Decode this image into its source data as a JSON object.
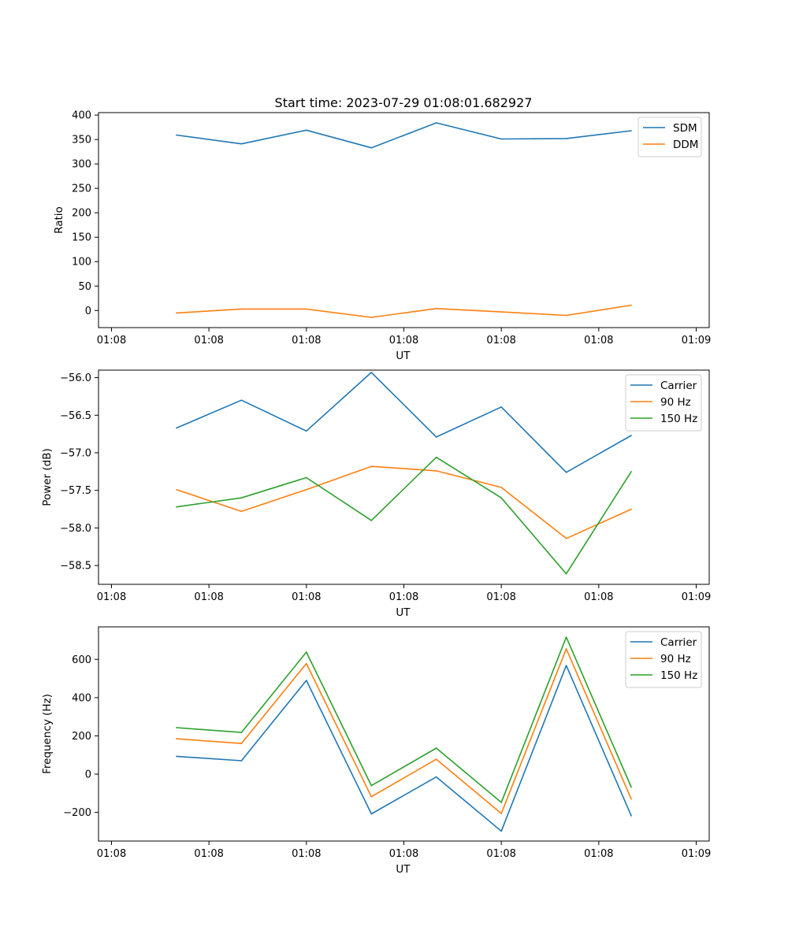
{
  "figure_title": "Start time: 2023-07-29 01:08:01.682927",
  "chart_data": [
    {
      "type": "line",
      "title": "Start time: 2023-07-29 01:08:01.682927",
      "xlabel": "UT",
      "ylabel": "Ratio",
      "x": [
        1,
        2,
        3,
        4,
        5,
        6,
        7,
        8
      ],
      "xlim": [
        -0.2,
        9.2
      ],
      "xticks": [
        0,
        1.5,
        3,
        4.5,
        6,
        7.5,
        9
      ],
      "xtick_labels": [
        "01:08",
        "01:08",
        "01:08",
        "01:08",
        "01:08",
        "01:08",
        "01:09"
      ],
      "ylim": [
        -35,
        405
      ],
      "yticks": [
        0,
        50,
        100,
        150,
        200,
        250,
        300,
        350,
        400
      ],
      "ytick_labels": [
        "0",
        "50",
        "100",
        "150",
        "200",
        "250",
        "300",
        "350",
        "400"
      ],
      "legend_position": "top-right",
      "series": [
        {
          "name": "SDM",
          "color": "#1f77b4",
          "values": [
            359,
            341,
            369,
            333,
            384,
            351,
            352,
            368
          ]
        },
        {
          "name": "DDM",
          "color": "#ff7f0e",
          "values": [
            -5,
            3,
            3,
            -14,
            4,
            -3,
            -10,
            11
          ]
        }
      ]
    },
    {
      "type": "line",
      "xlabel": "UT",
      "ylabel": "Power (dB)",
      "x": [
        1,
        2,
        3,
        4,
        5,
        6,
        7,
        8
      ],
      "xlim": [
        -0.2,
        9.2
      ],
      "xticks": [
        0,
        1.5,
        3,
        4.5,
        6,
        7.5,
        9
      ],
      "xtick_labels": [
        "01:08",
        "01:08",
        "01:08",
        "01:08",
        "01:08",
        "01:08",
        "01:09"
      ],
      "ylim": [
        -58.75,
        -55.9
      ],
      "yticks": [
        -58.5,
        -58.0,
        -57.5,
        -57.0,
        -56.5,
        -56.0
      ],
      "ytick_labels": [
        "−58.5",
        "−58.0",
        "−57.5",
        "−57.0",
        "−56.5",
        "−56.0"
      ],
      "legend_position": "top-right",
      "series": [
        {
          "name": "Carrier",
          "color": "#1f77b4",
          "values": [
            -56.67,
            -56.3,
            -56.71,
            -55.93,
            -56.79,
            -56.39,
            -57.26,
            -56.77
          ]
        },
        {
          "name": "90 Hz",
          "color": "#ff7f0e",
          "values": [
            -57.49,
            -57.78,
            -57.49,
            -57.18,
            -57.24,
            -57.46,
            -58.14,
            -57.75
          ]
        },
        {
          "name": "150 Hz",
          "color": "#2ca02c",
          "values": [
            -57.72,
            -57.6,
            -57.33,
            -57.9,
            -57.06,
            -57.6,
            -58.61,
            -57.25
          ]
        }
      ]
    },
    {
      "type": "line",
      "xlabel": "UT",
      "ylabel": "Frequency (Hz)",
      "x": [
        1,
        2,
        3,
        4,
        5,
        6,
        7,
        8
      ],
      "xlim": [
        -0.2,
        9.2
      ],
      "xticks": [
        0,
        1.5,
        3,
        4.5,
        6,
        7.5,
        9
      ],
      "xtick_labels": [
        "01:08",
        "01:08",
        "01:08",
        "01:08",
        "01:08",
        "01:08",
        "01:09"
      ],
      "ylim": [
        -350,
        770
      ],
      "yticks": [
        -200,
        0,
        200,
        400,
        600
      ],
      "ytick_labels": [
        "−200",
        "0",
        "200",
        "400",
        "600"
      ],
      "legend_position": "top-right",
      "series": [
        {
          "name": "Carrier",
          "color": "#1f77b4",
          "values": [
            93,
            70,
            490,
            -208,
            -15,
            -298,
            568,
            -218
          ]
        },
        {
          "name": "90 Hz",
          "color": "#ff7f0e",
          "values": [
            185,
            160,
            578,
            -118,
            78,
            -206,
            655,
            -130
          ]
        },
        {
          "name": "150 Hz",
          "color": "#2ca02c",
          "values": [
            243,
            218,
            638,
            -60,
            136,
            -148,
            716,
            -68
          ]
        }
      ]
    }
  ]
}
